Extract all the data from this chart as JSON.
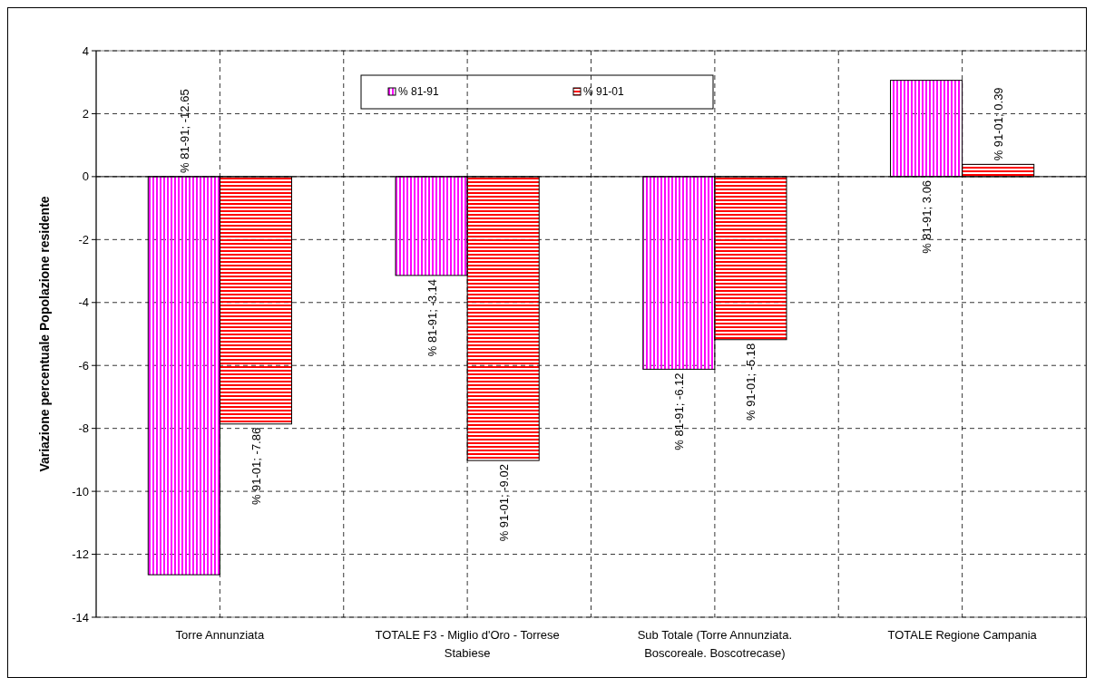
{
  "chart_data": {
    "type": "bar",
    "ylabel": "Variazione percentuale Popolazione residente",
    "categories": [
      "Torre Annunziata",
      "TOTALE F3 - Miglio d'Oro - Torrese Stabiese",
      "Sub Totale (Torre Annunziata. Boscoreale. Boscotrecase)",
      "TOTALE Regione Campania"
    ],
    "series": [
      {
        "name": "% 81-91",
        "color": "#ff00ff",
        "values": [
          -12.65,
          -3.14,
          -6.12,
          3.06
        ],
        "value_labels": [
          "% 81-91; -12.65",
          "% 81-91; -3.14",
          "% 81-91; -6.12",
          "% 81-91; 3.06"
        ]
      },
      {
        "name": "% 91-01",
        "color": "#ff0000",
        "values": [
          -7.86,
          -9.02,
          -5.18,
          0.39
        ],
        "value_labels": [
          "% 91-01; -7.86",
          "% 91-01; -9.02",
          "% 91-01; -5.18",
          "% 91-01; 0.39"
        ]
      }
    ],
    "ylim": [
      -14,
      4
    ],
    "yticks": [
      -14,
      -12,
      -10,
      -8,
      -6,
      -4,
      -2,
      0,
      2,
      4
    ],
    "grid": true,
    "legend": "top"
  }
}
